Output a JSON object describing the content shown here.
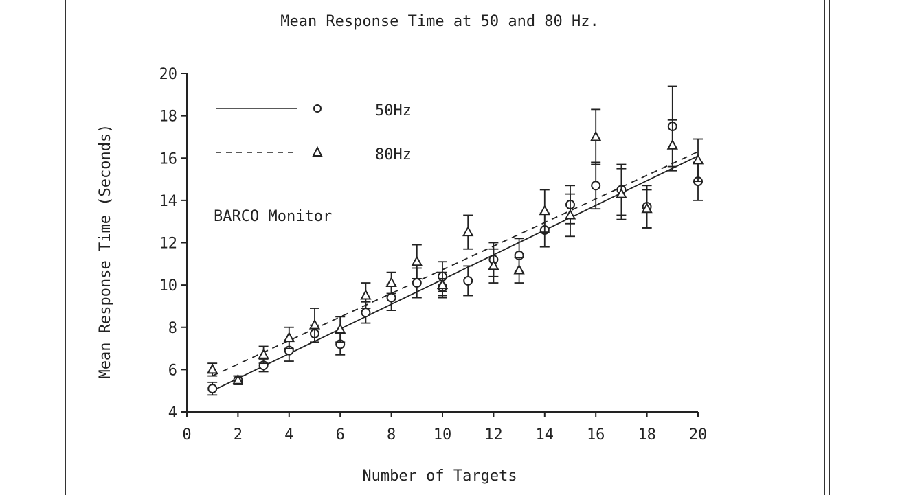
{
  "chart_data": {
    "type": "scatter",
    "title": "Mean Response Time at 50 and 80 Hz.",
    "xlabel": "Number of Targets",
    "ylabel": "Mean Response Time (Seconds)",
    "annotation": "BARCO Monitor",
    "xlim": [
      0,
      20
    ],
    "ylim": [
      4,
      20
    ],
    "xticks": [
      "0",
      "2",
      "4",
      "6",
      "8",
      "10",
      "12",
      "14",
      "16",
      "18",
      "20"
    ],
    "yticks": [
      "4",
      "6",
      "8",
      "10",
      "12",
      "14",
      "16",
      "18",
      "20"
    ],
    "grid": false,
    "legend_position": "top-left",
    "series": [
      {
        "name": "50Hz",
        "marker": "circle",
        "line_style": "solid",
        "x": [
          1,
          2,
          3,
          4,
          5,
          6,
          7,
          8,
          9,
          10,
          10,
          11,
          12,
          13,
          14,
          15,
          16,
          17,
          18,
          19,
          20
        ],
        "y": [
          5.1,
          5.5,
          6.2,
          6.9,
          7.7,
          7.2,
          8.7,
          9.4,
          10.1,
          10.4,
          9.9,
          10.2,
          11.2,
          11.4,
          12.6,
          13.8,
          14.7,
          14.5,
          13.7,
          17.5,
          14.9
        ],
        "err": [
          0.3,
          0.2,
          0.3,
          0.5,
          0.4,
          0.5,
          0.5,
          0.6,
          0.7,
          0.7,
          0.4,
          0.7,
          0.8,
          0.8,
          0.8,
          0.9,
          1.1,
          1.2,
          1.0,
          1.9,
          0.9
        ],
        "fit_line": [
          [
            1,
            5.0
          ],
          [
            20,
            16.1
          ]
        ]
      },
      {
        "name": "80Hz",
        "marker": "triangle",
        "line_style": "dashed",
        "x": [
          1,
          2,
          3,
          4,
          5,
          6,
          7,
          8,
          9,
          10,
          11,
          12,
          13,
          14,
          15,
          16,
          17,
          18,
          19,
          20
        ],
        "y": [
          6.0,
          5.5,
          6.7,
          7.5,
          8.1,
          7.9,
          9.5,
          10.1,
          11.1,
          10.0,
          12.5,
          10.9,
          10.7,
          13.5,
          13.3,
          17.0,
          14.3,
          13.6,
          16.6,
          15.9
        ],
        "err": [
          0.3,
          0.2,
          0.4,
          0.5,
          0.8,
          0.6,
          0.6,
          0.5,
          0.8,
          0.6,
          0.8,
          0.8,
          0.6,
          1.0,
          1.0,
          1.3,
          1.2,
          0.9,
          1.2,
          1.0
        ],
        "fit_line": [
          [
            1,
            5.7
          ],
          [
            20,
            16.3
          ]
        ]
      }
    ]
  }
}
